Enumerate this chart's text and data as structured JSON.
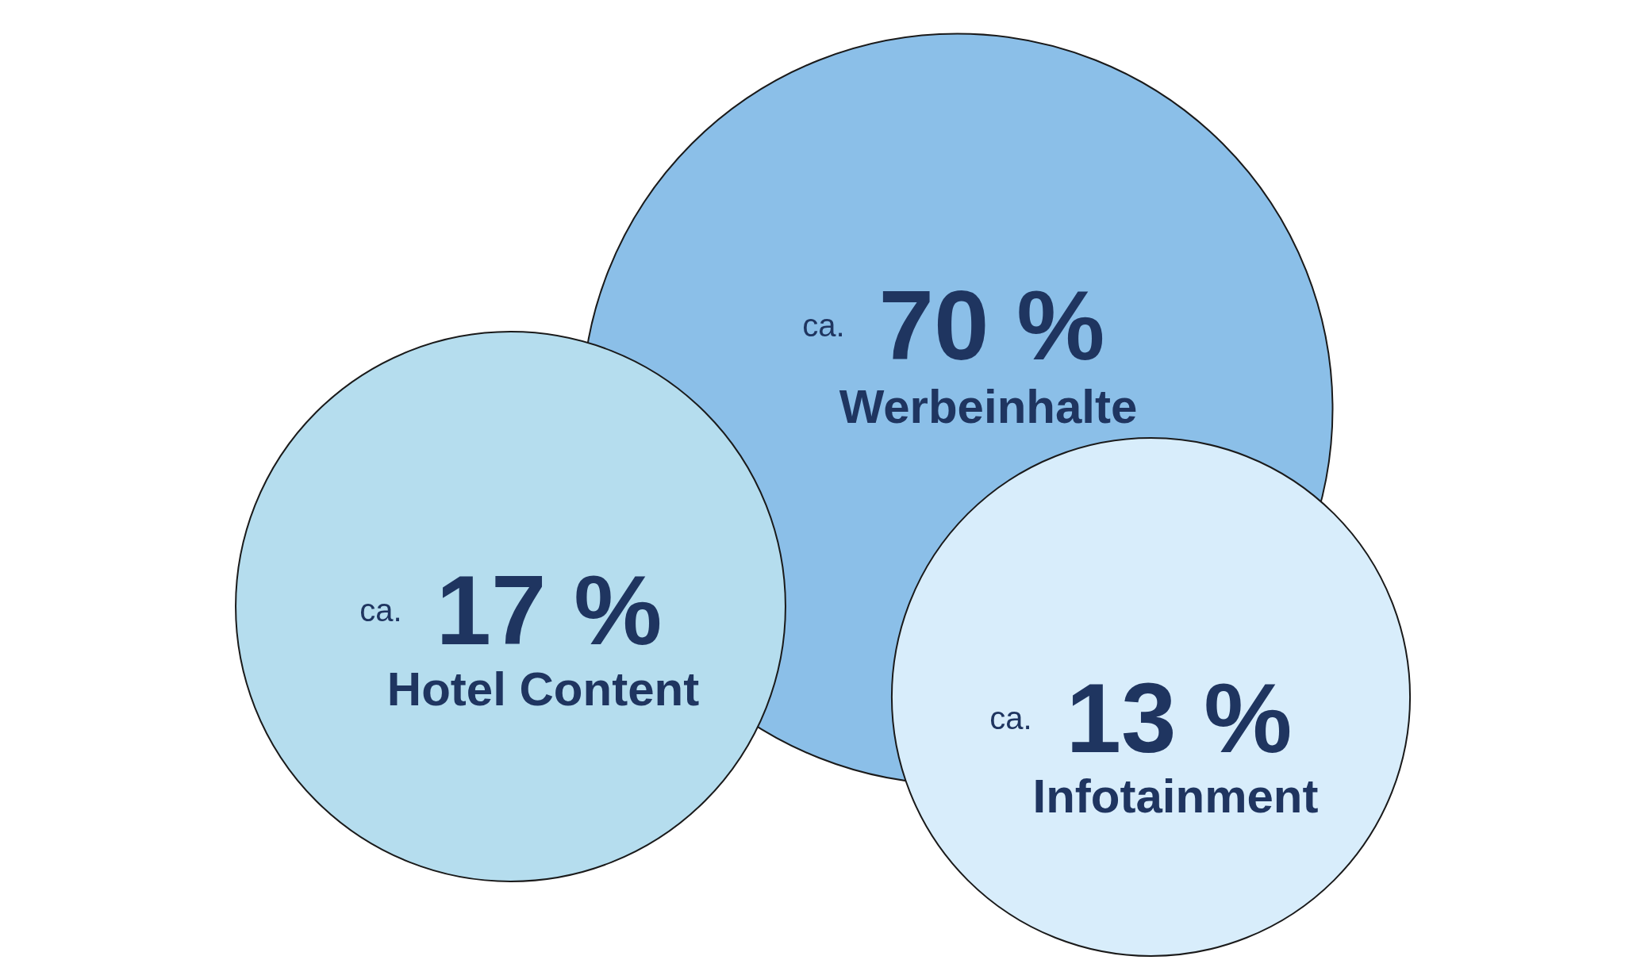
{
  "chart_data": {
    "type": "other",
    "categories": [
      "Werbeinhalte",
      "Hotel Content",
      "Infotainment"
    ],
    "values": [
      70,
      17,
      13
    ],
    "value_labels": [
      "ca. 70 %",
      "ca. 17 %",
      "ca. 13 %"
    ],
    "colors": [
      "#8bbfe8",
      "#b5ddee",
      "#d8edfb"
    ]
  }
}
